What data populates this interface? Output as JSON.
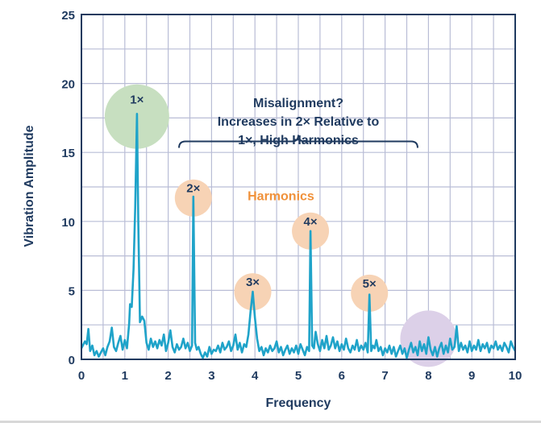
{
  "chart_data": {
    "type": "line",
    "xlabel": "Frequency",
    "ylabel": "Vibration Amplitude",
    "xlim": [
      0,
      10
    ],
    "ylim": [
      0,
      25
    ],
    "x_ticks": [
      "0",
      "1",
      "2",
      "3",
      "4",
      "5",
      "6",
      "7",
      "8",
      "9",
      "10"
    ],
    "y_ticks": [
      "0",
      "5",
      "10",
      "15",
      "20",
      "25"
    ],
    "grid": true,
    "series": [
      {
        "color": "#1fa3c9",
        "points": [
          [
            0.0,
            0.8
          ],
          [
            0.08,
            1.3
          ],
          [
            0.12,
            1.1
          ],
          [
            0.16,
            2.2
          ],
          [
            0.2,
            0.6
          ],
          [
            0.25,
            1.0
          ],
          [
            0.3,
            0.3
          ],
          [
            0.35,
            0.6
          ],
          [
            0.4,
            0.2
          ],
          [
            0.45,
            0.5
          ],
          [
            0.5,
            0.8
          ],
          [
            0.55,
            0.3
          ],
          [
            0.6,
            0.9
          ],
          [
            0.65,
            1.3
          ],
          [
            0.7,
            2.3
          ],
          [
            0.75,
            0.9
          ],
          [
            0.8,
            0.6
          ],
          [
            0.85,
            1.2
          ],
          [
            0.9,
            1.7
          ],
          [
            0.95,
            0.7
          ],
          [
            1.0,
            1.4
          ],
          [
            1.05,
            0.8
          ],
          [
            1.1,
            2.6
          ],
          [
            1.12,
            4.0
          ],
          [
            1.16,
            3.8
          ],
          [
            1.2,
            6.5
          ],
          [
            1.24,
            11.0
          ],
          [
            1.28,
            17.8
          ],
          [
            1.31,
            10.0
          ],
          [
            1.35,
            2.7
          ],
          [
            1.4,
            3.1
          ],
          [
            1.45,
            2.8
          ],
          [
            1.5,
            1.2
          ],
          [
            1.55,
            0.7
          ],
          [
            1.6,
            1.5
          ],
          [
            1.65,
            0.9
          ],
          [
            1.7,
            1.3
          ],
          [
            1.75,
            0.8
          ],
          [
            1.8,
            1.4
          ],
          [
            1.85,
            1.0
          ],
          [
            1.9,
            1.8
          ],
          [
            1.95,
            0.6
          ],
          [
            2.0,
            1.2
          ],
          [
            2.05,
            2.1
          ],
          [
            2.1,
            0.9
          ],
          [
            2.15,
            0.5
          ],
          [
            2.2,
            1.1
          ],
          [
            2.25,
            0.7
          ],
          [
            2.3,
            0.9
          ],
          [
            2.35,
            1.5
          ],
          [
            2.4,
            0.8
          ],
          [
            2.45,
            1.2
          ],
          [
            2.5,
            0.6
          ],
          [
            2.55,
            1.0
          ],
          [
            2.58,
            11.8
          ],
          [
            2.62,
            1.2
          ],
          [
            2.66,
            0.7
          ],
          [
            2.7,
            0.9
          ],
          [
            2.75,
            0.4
          ],
          [
            2.8,
            0.1
          ],
          [
            2.85,
            0.5
          ],
          [
            2.9,
            0.2
          ],
          [
            2.95,
            0.9
          ],
          [
            3.0,
            0.4
          ],
          [
            3.05,
            0.7
          ],
          [
            3.1,
            0.6
          ],
          [
            3.15,
            1.0
          ],
          [
            3.2,
            0.5
          ],
          [
            3.25,
            1.2
          ],
          [
            3.3,
            0.7
          ],
          [
            3.35,
            0.9
          ],
          [
            3.4,
            1.3
          ],
          [
            3.45,
            0.6
          ],
          [
            3.5,
            1.0
          ],
          [
            3.55,
            1.8
          ],
          [
            3.6,
            0.7
          ],
          [
            3.65,
            1.2
          ],
          [
            3.7,
            0.5
          ],
          [
            3.75,
            1.1
          ],
          [
            3.8,
            0.9
          ],
          [
            3.85,
            1.8
          ],
          [
            3.9,
            3.5
          ],
          [
            3.95,
            4.9
          ],
          [
            4.0,
            3.0
          ],
          [
            4.05,
            1.5
          ],
          [
            4.1,
            0.6
          ],
          [
            4.15,
            0.9
          ],
          [
            4.2,
            0.3
          ],
          [
            4.25,
            0.8
          ],
          [
            4.3,
            0.5
          ],
          [
            4.35,
            1.0
          ],
          [
            4.4,
            0.6
          ],
          [
            4.45,
            0.8
          ],
          [
            4.5,
            1.3
          ],
          [
            4.55,
            0.5
          ],
          [
            4.6,
            0.9
          ],
          [
            4.65,
            0.3
          ],
          [
            4.7,
            0.7
          ],
          [
            4.75,
            1.0
          ],
          [
            4.8,
            0.4
          ],
          [
            4.85,
            0.8
          ],
          [
            4.9,
            0.5
          ],
          [
            4.95,
            1.0
          ],
          [
            5.0,
            0.4
          ],
          [
            5.05,
            1.1
          ],
          [
            5.1,
            0.7
          ],
          [
            5.15,
            0.3
          ],
          [
            5.2,
            0.9
          ],
          [
            5.25,
            0.6
          ],
          [
            5.28,
            9.3
          ],
          [
            5.32,
            1.0
          ],
          [
            5.36,
            0.8
          ],
          [
            5.4,
            2.0
          ],
          [
            5.45,
            1.1
          ],
          [
            5.5,
            0.6
          ],
          [
            5.55,
            1.4
          ],
          [
            5.6,
            0.8
          ],
          [
            5.65,
            1.7
          ],
          [
            5.7,
            0.7
          ],
          [
            5.75,
            1.0
          ],
          [
            5.8,
            1.6
          ],
          [
            5.85,
            0.8
          ],
          [
            5.9,
            1.3
          ],
          [
            5.95,
            0.6
          ],
          [
            6.0,
            1.1
          ],
          [
            6.05,
            0.7
          ],
          [
            6.1,
            1.5
          ],
          [
            6.15,
            0.8
          ],
          [
            6.2,
            0.5
          ],
          [
            6.25,
            1.0
          ],
          [
            6.3,
            0.7
          ],
          [
            6.35,
            1.4
          ],
          [
            6.4,
            0.6
          ],
          [
            6.45,
            1.0
          ],
          [
            6.5,
            0.7
          ],
          [
            6.55,
            1.2
          ],
          [
            6.6,
            0.5
          ],
          [
            6.64,
            4.7
          ],
          [
            6.68,
            0.6
          ],
          [
            6.72,
            1.0
          ],
          [
            6.76,
            0.8
          ],
          [
            6.8,
            1.4
          ],
          [
            6.85,
            0.6
          ],
          [
            6.9,
            0.9
          ],
          [
            6.95,
            0.3
          ],
          [
            7.0,
            0.8
          ],
          [
            7.05,
            0.5
          ],
          [
            7.1,
            1.0
          ],
          [
            7.15,
            0.4
          ],
          [
            7.2,
            0.9
          ],
          [
            7.25,
            0.2
          ],
          [
            7.3,
            0.6
          ],
          [
            7.35,
            1.0
          ],
          [
            7.4,
            0.4
          ],
          [
            7.45,
            0.8
          ],
          [
            7.5,
            0.1
          ],
          [
            7.55,
            0.7
          ],
          [
            7.6,
            1.2
          ],
          [
            7.65,
            0.5
          ],
          [
            7.7,
            0.9
          ],
          [
            7.75,
            0.3
          ],
          [
            7.8,
            1.3
          ],
          [
            7.85,
            0.6
          ],
          [
            7.9,
            1.1
          ],
          [
            7.95,
            0.4
          ],
          [
            8.0,
            1.6
          ],
          [
            8.05,
            0.7
          ],
          [
            8.1,
            0.3
          ],
          [
            8.15,
            0.9
          ],
          [
            8.2,
            0.2
          ],
          [
            8.25,
            0.8
          ],
          [
            8.3,
            1.2
          ],
          [
            8.35,
            0.4
          ],
          [
            8.4,
            1.0
          ],
          [
            8.45,
            0.5
          ],
          [
            8.5,
            1.5
          ],
          [
            8.55,
            0.7
          ],
          [
            8.6,
            0.9
          ],
          [
            8.65,
            2.4
          ],
          [
            8.7,
            0.6
          ],
          [
            8.75,
            1.2
          ],
          [
            8.8,
            0.7
          ],
          [
            8.85,
            1.0
          ],
          [
            8.9,
            0.5
          ],
          [
            8.95,
            1.3
          ],
          [
            9.0,
            0.6
          ],
          [
            9.05,
            1.0
          ],
          [
            9.1,
            0.7
          ],
          [
            9.15,
            1.4
          ],
          [
            9.2,
            0.6
          ],
          [
            9.25,
            1.1
          ],
          [
            9.3,
            0.8
          ],
          [
            9.35,
            1.2
          ],
          [
            9.4,
            0.5
          ],
          [
            9.45,
            1.0
          ],
          [
            9.5,
            0.8
          ],
          [
            9.55,
            1.3
          ],
          [
            9.6,
            0.7
          ],
          [
            9.65,
            1.0
          ],
          [
            9.7,
            0.6
          ],
          [
            9.75,
            1.2
          ],
          [
            9.8,
            0.9
          ],
          [
            9.85,
            0.5
          ],
          [
            9.9,
            1.3
          ],
          [
            9.95,
            0.9
          ],
          [
            10.0,
            0.6
          ]
        ]
      }
    ],
    "markers": [
      {
        "label": "1×",
        "x": 1.28,
        "y": 17.6,
        "color": "#c7dfc0"
      },
      {
        "label": "2×",
        "x": 2.58,
        "y": 11.7,
        "color": "#f7d3b5"
      },
      {
        "label": "3×",
        "x": 3.95,
        "y": 4.9,
        "color": "#f7d3b5"
      },
      {
        "label": "4×",
        "x": 5.28,
        "y": 9.3,
        "color": "#f7d3b5"
      },
      {
        "label": "5×",
        "x": 6.64,
        "y": 4.8,
        "color": "#f7d3b5"
      },
      {
        "label": "",
        "x": 8.0,
        "y": 1.5,
        "color": "#dcd0e8"
      }
    ],
    "annotation": {
      "lines": [
        "Misalignment?",
        "Increases in 2× Relative to",
        "1×, High Harmonics"
      ],
      "brace_x": [
        2.25,
        7.75
      ],
      "brace_y": 15.8
    },
    "harmonics_label": {
      "text": "Harmonics",
      "x": 4.6,
      "y": 11.9,
      "color": "#f0913a"
    },
    "colors": {
      "axis": "#1f3a5f",
      "grid": "#b9bdd6",
      "line": "#1fa3c9"
    }
  }
}
